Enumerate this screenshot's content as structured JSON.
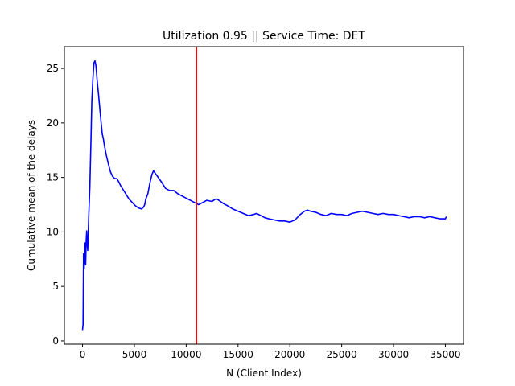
{
  "chart_data": {
    "type": "line",
    "title": "Utilization 0.95 || Service Time: DET",
    "xlabel": "N (Client Index)",
    "ylabel": "Cumulative mean of the delays",
    "xlim": [
      -1750,
      36750
    ],
    "ylim": [
      -0.3,
      27.0
    ],
    "xticks": [
      0,
      5000,
      10000,
      15000,
      20000,
      25000,
      30000,
      35000
    ],
    "yticks": [
      0,
      5,
      10,
      15,
      20,
      25
    ],
    "grid": false,
    "series": [
      {
        "color": "#0000ff",
        "x": [
          0,
          50,
          100,
          150,
          200,
          250,
          300,
          350,
          400,
          450,
          500,
          600,
          700,
          800,
          900,
          1000,
          1100,
          1200,
          1300,
          1400,
          1500,
          1600,
          1700,
          1800,
          1900,
          2000,
          2100,
          2200,
          2300,
          2400,
          2500,
          2700,
          2900,
          3100,
          3300,
          3500,
          3700,
          3900,
          4100,
          4300,
          4500,
          4800,
          5100,
          5400,
          5700,
          5900,
          6000,
          6100,
          6300,
          6500,
          6700,
          6850,
          7000,
          7300,
          7600,
          8000,
          8400,
          8800,
          9200,
          9600,
          10000,
          10400,
          10800,
          11200,
          11600,
          12000,
          12500,
          12800,
          13000,
          13300,
          13600,
          14000,
          14500,
          15000,
          15500,
          16000,
          16500,
          16800,
          17200,
          17600,
          18000,
          18500,
          19000,
          19500,
          20000,
          20500,
          21000,
          21400,
          21700,
          22000,
          22500,
          23000,
          23500,
          24000,
          24500,
          25000,
          25500,
          26000,
          26500,
          27000,
          27500,
          28000,
          28500,
          29000,
          29500,
          30000,
          30500,
          31000,
          31500,
          32000,
          32500,
          33000,
          33500,
          34000,
          34500,
          35000,
          35100
        ],
        "y": [
          1.0,
          1.5,
          8.0,
          6.6,
          8.0,
          9.0,
          7.0,
          9.2,
          10.1,
          9.0,
          8.3,
          11.5,
          14.0,
          18.0,
          22.0,
          24.0,
          25.5,
          25.7,
          25.2,
          24.0,
          23.0,
          22.0,
          21.0,
          20.0,
          19.0,
          18.6,
          18.0,
          17.5,
          17.0,
          16.6,
          16.2,
          15.5,
          15.1,
          14.9,
          14.9,
          14.6,
          14.2,
          13.9,
          13.6,
          13.3,
          13.0,
          12.7,
          12.4,
          12.2,
          12.1,
          12.3,
          12.5,
          13.0,
          13.5,
          14.5,
          15.3,
          15.6,
          15.4,
          15.0,
          14.6,
          14.0,
          13.8,
          13.8,
          13.5,
          13.3,
          13.1,
          12.9,
          12.7,
          12.5,
          12.7,
          12.9,
          12.8,
          13.0,
          13.0,
          12.8,
          12.6,
          12.4,
          12.1,
          11.9,
          11.7,
          11.5,
          11.6,
          11.7,
          11.5,
          11.3,
          11.2,
          11.1,
          11.0,
          11.0,
          10.9,
          11.1,
          11.6,
          11.9,
          12.0,
          11.9,
          11.8,
          11.6,
          11.5,
          11.7,
          11.6,
          11.6,
          11.5,
          11.7,
          11.8,
          11.9,
          11.8,
          11.7,
          11.6,
          11.7,
          11.6,
          11.6,
          11.5,
          11.4,
          11.3,
          11.4,
          11.4,
          11.3,
          11.4,
          11.3,
          11.2,
          11.2,
          11.4
        ]
      }
    ],
    "annotations": [
      {
        "type": "vline",
        "x": 11000,
        "color": "#ff0000"
      }
    ]
  }
}
